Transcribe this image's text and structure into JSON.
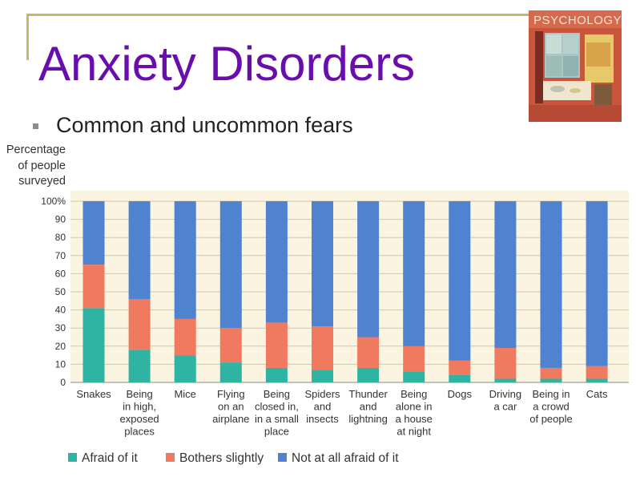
{
  "slide": {
    "title": "Anxiety Disorders",
    "bullet": "Common and uncommon fears",
    "book_cover_text": "PSYCHOLOGY"
  },
  "chart_data": {
    "type": "bar",
    "stacked": true,
    "ylabel": [
      "Percentage",
      "of people",
      "surveyed"
    ],
    "ylim": [
      0,
      100
    ],
    "yticks": [
      "0",
      "10",
      "20",
      "30",
      "40",
      "50",
      "60",
      "70",
      "80",
      "90",
      "100%"
    ],
    "grid": true,
    "legend_position": "bottom",
    "categories": [
      [
        "Snakes"
      ],
      [
        "Being",
        "in high,",
        "exposed",
        "places"
      ],
      [
        "Mice"
      ],
      [
        "Flying",
        "on an",
        "airplane"
      ],
      [
        "Being",
        "closed in,",
        "in a small",
        "place"
      ],
      [
        "Spiders",
        "and",
        "insects"
      ],
      [
        "Thunder",
        "and",
        "lightning"
      ],
      [
        "Being",
        "alone in",
        "a house",
        "at night"
      ],
      [
        "Dogs"
      ],
      [
        "Driving",
        "a car"
      ],
      [
        "Being in",
        "a crowd",
        "of people"
      ],
      [
        "Cats"
      ]
    ],
    "series": [
      {
        "name": "Afraid of it",
        "color": "#2fb3a3",
        "values": [
          41,
          18,
          15,
          11,
          8,
          7,
          8,
          6,
          4,
          2,
          2,
          2
        ]
      },
      {
        "name": "Bothers slightly",
        "color": "#f07a5f",
        "values": [
          24,
          28,
          20,
          19,
          25,
          24,
          17,
          14,
          8,
          17,
          6,
          7
        ]
      },
      {
        "name": "Not at all afraid of it",
        "color": "#4f82cf",
        "values": [
          35,
          54,
          65,
          70,
          67,
          69,
          75,
          80,
          88,
          81,
          92,
          91
        ]
      }
    ]
  }
}
